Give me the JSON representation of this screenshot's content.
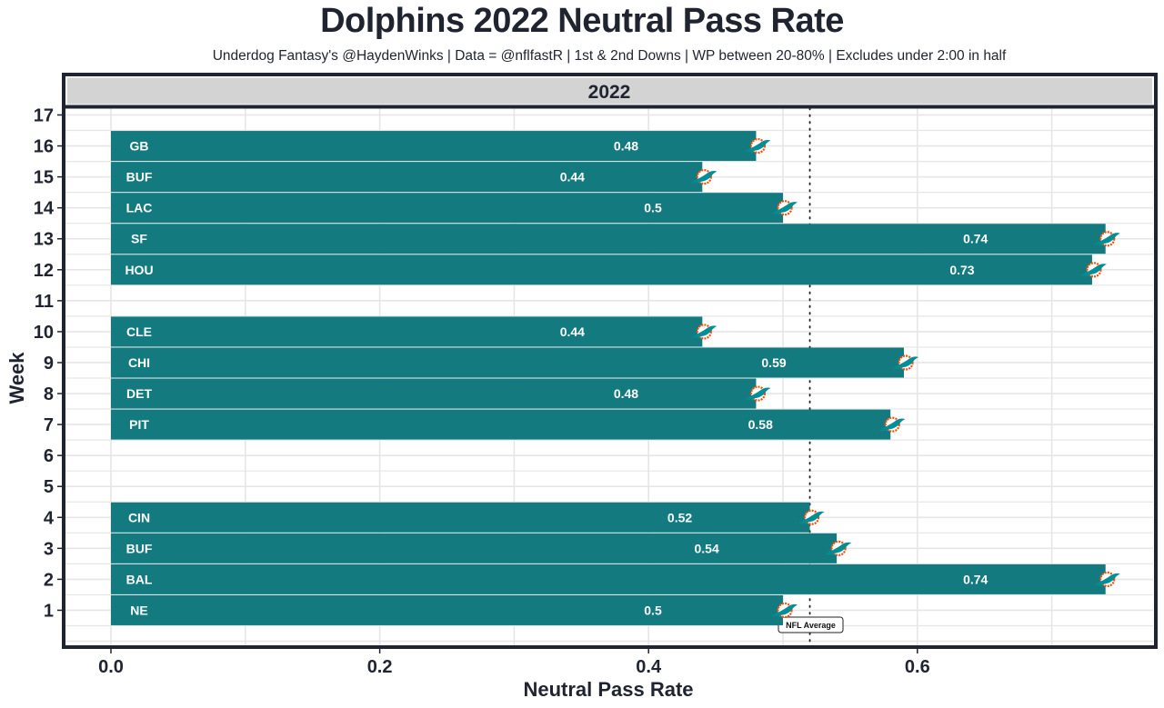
{
  "title": "Dolphins 2022 Neutral Pass Rate",
  "subtitle": "Underdog Fantasy's @HaydenWinks | Data = @nflfastR | 1st & 2nd Downs | WP between 20-80% | Excludes under 2:00 in half",
  "colors": {
    "bar": "#137b80",
    "panel_border": "#1f2430",
    "strip_fill": "#d3d3d3",
    "grid": "#e6e6e6",
    "logo_teal": "#008e97",
    "logo_orange": "#fc4c02"
  },
  "chart_data": {
    "type": "bar",
    "orientation": "horizontal",
    "title": "Dolphins 2022 Neutral Pass Rate",
    "facet_label": "2022",
    "xlabel": "Neutral Pass Rate",
    "ylabel": "Week",
    "xlim": [
      0,
      0.76
    ],
    "ylim": [
      0,
      17
    ],
    "x_ticks": [
      "0.0",
      "0.2",
      "0.4",
      "0.6"
    ],
    "x_tick_values": [
      0.0,
      0.2,
      0.4,
      0.6
    ],
    "y_ticks": [
      "1",
      "2",
      "3",
      "4",
      "5",
      "6",
      "7",
      "8",
      "9",
      "10",
      "11",
      "12",
      "13",
      "14",
      "15",
      "16",
      "17"
    ],
    "grid": true,
    "reference_line": {
      "value": 0.52,
      "label": "NFL Average",
      "style": "dotted"
    },
    "bar_marker": "Miami Dolphins logo",
    "series": [
      {
        "week": 16,
        "opponent": "GB",
        "value": 0.48,
        "label": "0.48"
      },
      {
        "week": 15,
        "opponent": "BUF",
        "value": 0.44,
        "label": "0.44"
      },
      {
        "week": 14,
        "opponent": "LAC",
        "value": 0.5,
        "label": "0.5"
      },
      {
        "week": 13,
        "opponent": "SF",
        "value": 0.74,
        "label": "0.74"
      },
      {
        "week": 12,
        "opponent": "HOU",
        "value": 0.73,
        "label": "0.73"
      },
      {
        "week": 10,
        "opponent": "CLE",
        "value": 0.44,
        "label": "0.44"
      },
      {
        "week": 9,
        "opponent": "CHI",
        "value": 0.59,
        "label": "0.59"
      },
      {
        "week": 8,
        "opponent": "DET",
        "value": 0.48,
        "label": "0.48"
      },
      {
        "week": 7,
        "opponent": "PIT",
        "value": 0.58,
        "label": "0.58"
      },
      {
        "week": 4,
        "opponent": "CIN",
        "value": 0.52,
        "label": "0.52"
      },
      {
        "week": 3,
        "opponent": "BUF",
        "value": 0.54,
        "label": "0.54"
      },
      {
        "week": 2,
        "opponent": "BAL",
        "value": 0.74,
        "label": "0.74"
      },
      {
        "week": 1,
        "opponent": "NE",
        "value": 0.5,
        "label": "0.5"
      }
    ]
  }
}
